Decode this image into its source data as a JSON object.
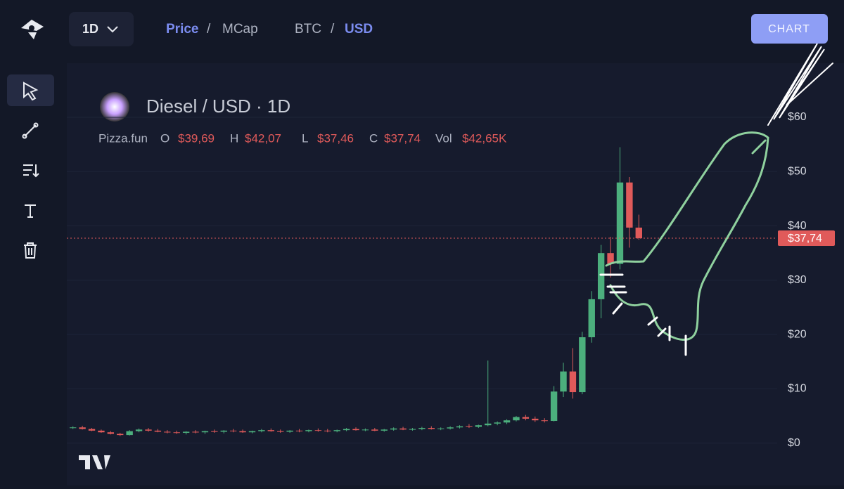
{
  "toolbar": {
    "interval": "1D",
    "price": "Price",
    "separator": "/",
    "mcap": "MCap",
    "base": "BTC",
    "quote": "USD",
    "button": "CHART"
  },
  "header": {
    "source": "Pizza.fun",
    "items": [
      {
        "label": "O",
        "value": "$39,69"
      },
      {
        "label": "H",
        "value": "$42,07"
      },
      {
        "label": "L",
        "value": "$37,46"
      },
      {
        "label": "C",
        "value": "$37,74"
      },
      {
        "label": "Vol",
        "value": "$42,65K"
      }
    ]
  },
  "chart_data": {
    "type": "candlestick",
    "title": "Diesel / USD · 1D",
    "up_color": "#4caf7d",
    "down_color": "#e05a5a",
    "ylim": [
      -7.8,
      69.7
    ],
    "yticks": [
      {
        "value": 0,
        "label": "$0"
      },
      {
        "value": 10,
        "label": "$10"
      },
      {
        "value": 20,
        "label": "$20"
      },
      {
        "value": 30,
        "label": "$30"
      },
      {
        "value": 40,
        "label": "$40"
      },
      {
        "value": 50,
        "label": "$50"
      },
      {
        "value": 60,
        "label": "$60"
      }
    ],
    "last_price": {
      "value": 37.74,
      "label": "$37,74"
    },
    "ohlc": [
      [
        2.8,
        3.1,
        2.6,
        2.9
      ],
      [
        2.9,
        3.2,
        2.5,
        2.6
      ],
      [
        2.6,
        2.8,
        2.2,
        2.3
      ],
      [
        2.3,
        2.5,
        1.9,
        2.0
      ],
      [
        2.0,
        2.2,
        1.6,
        1.7
      ],
      [
        1.7,
        1.9,
        1.3,
        1.5
      ],
      [
        1.5,
        2.4,
        1.4,
        2.2
      ],
      [
        2.2,
        2.7,
        2.0,
        2.5
      ],
      [
        2.5,
        2.8,
        2.1,
        2.3
      ],
      [
        2.3,
        2.6,
        2.0,
        2.1
      ],
      [
        2.1,
        2.4,
        1.8,
        2.0
      ],
      [
        2.0,
        2.3,
        1.7,
        1.9
      ],
      [
        1.9,
        2.2,
        1.6,
        2.1
      ],
      [
        2.1,
        2.4,
        1.8,
        2.0
      ],
      [
        2.0,
        2.3,
        1.7,
        2.2
      ],
      [
        2.2,
        2.5,
        1.9,
        2.1
      ],
      [
        2.1,
        2.4,
        1.8,
        2.3
      ],
      [
        2.3,
        2.6,
        2.0,
        2.2
      ],
      [
        2.2,
        2.5,
        1.9,
        2.0
      ],
      [
        2.0,
        2.3,
        1.8,
        2.2
      ],
      [
        2.2,
        2.6,
        2.0,
        2.4
      ],
      [
        2.4,
        2.7,
        2.1,
        2.2
      ],
      [
        2.2,
        2.5,
        1.9,
        2.1
      ],
      [
        2.1,
        2.4,
        1.9,
        2.3
      ],
      [
        2.3,
        2.6,
        2.0,
        2.2
      ],
      [
        2.2,
        2.5,
        2.0,
        2.4
      ],
      [
        2.4,
        2.7,
        2.1,
        2.3
      ],
      [
        2.3,
        2.6,
        2.0,
        2.2
      ],
      [
        2.2,
        2.5,
        2.0,
        2.4
      ],
      [
        2.4,
        2.8,
        2.2,
        2.6
      ],
      [
        2.6,
        2.9,
        2.3,
        2.4
      ],
      [
        2.4,
        2.7,
        2.2,
        2.5
      ],
      [
        2.5,
        2.8,
        2.2,
        2.3
      ],
      [
        2.3,
        2.6,
        2.1,
        2.5
      ],
      [
        2.5,
        2.9,
        2.3,
        2.7
      ],
      [
        2.7,
        3.0,
        2.4,
        2.5
      ],
      [
        2.5,
        2.8,
        2.3,
        2.6
      ],
      [
        2.6,
        3.0,
        2.4,
        2.8
      ],
      [
        2.8,
        3.1,
        2.5,
        2.6
      ],
      [
        2.6,
        2.9,
        2.4,
        2.7
      ],
      [
        2.7,
        3.1,
        2.5,
        2.9
      ],
      [
        2.9,
        3.3,
        2.7,
        3.1
      ],
      [
        3.1,
        3.5,
        2.8,
        3.0
      ],
      [
        3.0,
        3.4,
        2.8,
        3.3
      ],
      [
        3.3,
        15.2,
        3.1,
        3.6
      ],
      [
        3.6,
        4.0,
        3.3,
        3.8
      ],
      [
        3.8,
        4.4,
        3.5,
        4.2
      ],
      [
        4.2,
        5.0,
        4.0,
        4.8
      ],
      [
        4.8,
        5.2,
        4.2,
        4.5
      ],
      [
        4.5,
        4.9,
        3.9,
        4.2
      ],
      [
        4.2,
        4.6,
        3.8,
        4.1
      ],
      [
        4.1,
        10.5,
        4.0,
        9.5
      ],
      [
        9.5,
        14.8,
        8.5,
        13.2
      ],
      [
        13.2,
        17.5,
        8.2,
        9.4
      ],
      [
        9.4,
        20.5,
        9.0,
        19.5
      ],
      [
        19.5,
        28.0,
        18.5,
        26.5
      ],
      [
        26.5,
        36.5,
        23.0,
        35.0
      ],
      [
        35.0,
        38.0,
        30.5,
        33.0
      ],
      [
        33.0,
        54.5,
        32.0,
        48.0
      ],
      [
        48.0,
        49.0,
        36.0,
        39.69
      ],
      [
        39.69,
        42.07,
        37.46,
        37.74
      ]
    ]
  }
}
